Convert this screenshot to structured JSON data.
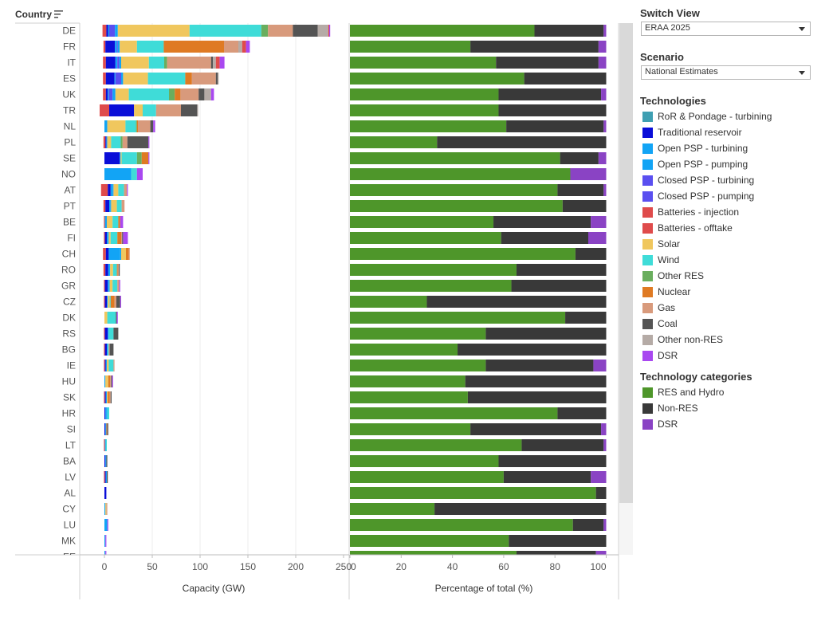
{
  "header": {
    "country_label": "Country"
  },
  "controls": {
    "switch_view": {
      "title": "Switch View",
      "value": "ERAA 2025"
    },
    "scenario": {
      "title": "Scenario",
      "value": "National Estimates"
    }
  },
  "legend_tech": {
    "title": "Technologies",
    "items": [
      {
        "label": "RoR & Pondage - turbining",
        "color": "#3f9fb2"
      },
      {
        "label": "Traditional reservoir",
        "color": "#0a0ed8"
      },
      {
        "label": "Open PSP - turbining",
        "color": "#12a4f5"
      },
      {
        "label": "Open PSP - pumping",
        "color": "#12a4f5"
      },
      {
        "label": "Closed PSP - turbining",
        "color": "#5a4ff0"
      },
      {
        "label": "Closed PSP - pumping",
        "color": "#5a4ff0"
      },
      {
        "label": "Batteries - injection",
        "color": "#df4b4b"
      },
      {
        "label": "Batteries - offtake",
        "color": "#df4b4b"
      },
      {
        "label": "Solar",
        "color": "#f0c75e"
      },
      {
        "label": "Wind",
        "color": "#3fdcd8"
      },
      {
        "label": "Other RES",
        "color": "#6aae5e"
      },
      {
        "label": "Nuclear",
        "color": "#df7a23"
      },
      {
        "label": "Gas",
        "color": "#d89a7c"
      },
      {
        "label": "Coal",
        "color": "#545454"
      },
      {
        "label": "Other non-RES",
        "color": "#b5aba6"
      },
      {
        "label": "DSR",
        "color": "#a948f0"
      }
    ]
  },
  "legend_cat": {
    "title": "Technology categories",
    "items": [
      {
        "label": "RES and Hydro",
        "color": "#4e962a"
      },
      {
        "label": "Non-RES",
        "color": "#393939"
      },
      {
        "label": "DSR",
        "color": "#8a43c4"
      }
    ]
  },
  "chart_data": [
    {
      "type": "bar",
      "orientation": "horizontal",
      "stacked": true,
      "xlabel": "Capacity (GW)",
      "xlim": [
        -5,
        250
      ],
      "xticks": [
        "0",
        "50",
        "100",
        "150",
        "200",
        "250"
      ],
      "categories": [
        "DE",
        "FR",
        "IT",
        "ES",
        "UK",
        "TR",
        "NL",
        "PL",
        "SE",
        "NO",
        "AT",
        "PT",
        "BE",
        "FI",
        "CH",
        "RO",
        "GR",
        "CZ",
        "DK",
        "RS",
        "BG",
        "IE",
        "HU",
        "SK",
        "HR",
        "SI",
        "LT",
        "BA",
        "LV",
        "AL",
        "CY",
        "LU",
        "MK",
        "EE"
      ],
      "series": [
        {
          "values": [
            4,
            2,
            3,
            3,
            3,
            10,
            0,
            2,
            0,
            0,
            7,
            2,
            1,
            1,
            3,
            2,
            1,
            1,
            0,
            1,
            1,
            1,
            0,
            1,
            0,
            0,
            1,
            0,
            1,
            0,
            0,
            0,
            0,
            0
          ]
        },
        {
          "values": [
            2,
            10,
            10,
            9,
            2,
            26,
            0,
            1,
            16,
            0,
            3,
            4,
            0,
            2,
            3,
            3,
            3,
            2,
            0,
            3,
            2,
            1,
            0,
            1,
            1,
            1,
            0,
            1,
            1,
            2,
            0,
            0,
            0,
            0
          ]
        },
        {
          "values": [
            1,
            2,
            2,
            1,
            1,
            0,
            0,
            0,
            1,
            28,
            2,
            1,
            0,
            1,
            12,
            1,
            1,
            0,
            0,
            0,
            0,
            0,
            0,
            0,
            1,
            0,
            0,
            0,
            0,
            0,
            0,
            0,
            0,
            0
          ]
        },
        {
          "values": [
            6,
            1,
            2,
            6,
            4,
            0,
            0,
            0,
            0,
            0,
            0,
            0,
            0,
            0,
            0,
            0,
            0,
            0,
            0,
            0,
            0,
            0,
            0,
            0,
            0,
            0,
            0,
            0,
            0,
            0,
            0,
            0,
            0,
            0
          ]
        },
        {
          "values": [
            3,
            2,
            2,
            2,
            3,
            0,
            3,
            1,
            0,
            0,
            1,
            1,
            2,
            1,
            1,
            1,
            1,
            1,
            0,
            1,
            1,
            1,
            1,
            1,
            1,
            1,
            1,
            1,
            1,
            0,
            1,
            3,
            1,
            1
          ]
        },
        {
          "values": [
            75,
            18,
            29,
            26,
            14,
            9,
            19,
            4,
            1,
            0,
            5,
            6,
            6,
            2,
            5,
            3,
            3,
            2,
            3,
            0,
            0,
            2,
            3,
            1,
            0,
            0,
            0,
            0,
            0,
            0,
            1,
            0,
            0,
            0
          ]
        },
        {
          "values": [
            75,
            28,
            16,
            39,
            42,
            14,
            11,
            10,
            16,
            6,
            6,
            5,
            6,
            7,
            0,
            4,
            5,
            1,
            9,
            5,
            1,
            5,
            0,
            0,
            2,
            0,
            1,
            0,
            0,
            0,
            0,
            0,
            0,
            0
          ]
        },
        {
          "values": [
            7,
            0,
            3,
            0,
            6,
            0,
            1,
            2,
            5,
            0,
            0,
            0,
            0,
            0,
            0,
            0,
            0,
            0,
            0,
            0,
            0,
            0,
            0,
            0,
            0,
            0,
            0,
            0,
            0,
            0,
            0,
            0,
            0,
            0
          ]
        },
        {
          "values": [
            0,
            63,
            0,
            7,
            6,
            0,
            1,
            0,
            7,
            0,
            0,
            0,
            2,
            4,
            3,
            1,
            0,
            4,
            0,
            0,
            0,
            0,
            2,
            2,
            0,
            1,
            0,
            0,
            0,
            0,
            0,
            0,
            0,
            0
          ]
        },
        {
          "values": [
            26,
            15,
            46,
            25,
            19,
            26,
            13,
            5,
            0,
            0,
            3,
            3,
            0,
            1,
            1,
            1,
            2,
            2,
            0,
            0,
            1,
            1,
            1,
            1,
            0,
            0,
            0,
            0,
            0,
            0,
            1,
            0,
            0,
            0
          ]
        },
        {
          "values": [
            26,
            0,
            2,
            2,
            6,
            17,
            3,
            22,
            0,
            0,
            0,
            0,
            0,
            1,
            0,
            1,
            0,
            4,
            1,
            5,
            4,
            0,
            1,
            1,
            0,
            1,
            0,
            1,
            1,
            0,
            0,
            0,
            0,
            0
          ]
        },
        {
          "values": [
            11,
            4,
            3,
            1,
            7,
            1,
            0,
            0,
            0,
            0,
            0,
            0,
            0,
            0,
            0,
            0,
            0,
            0,
            0,
            0,
            0,
            0,
            0,
            0,
            0,
            0,
            0,
            0,
            0,
            0,
            0,
            0,
            0,
            0
          ]
        },
        {
          "values": [
            1,
            4,
            4,
            0,
            0,
            0,
            0,
            0,
            0,
            0,
            0,
            0,
            0,
            0,
            0,
            0,
            0,
            0,
            0,
            0,
            0,
            0,
            0,
            0,
            0,
            0,
            0,
            0,
            0,
            0,
            0,
            0,
            0,
            0
          ]
        },
        {
          "values": [
            1,
            4,
            5,
            0,
            3,
            0,
            2,
            1,
            1,
            6,
            1,
            0,
            3,
            5,
            0,
            0,
            1,
            1,
            1,
            0,
            0,
            0,
            1,
            0,
            0,
            0,
            0,
            0,
            0,
            0,
            0,
            1,
            1,
            1
          ]
        }
      ]
    },
    {
      "type": "bar",
      "orientation": "horizontal",
      "stacked": true,
      "percent": true,
      "xlabel": "Percentage of total (%)",
      "xlim": [
        0,
        100
      ],
      "xticks": [
        "0",
        "20",
        "40",
        "60",
        "80",
        "100"
      ],
      "categories": [
        "DE",
        "FR",
        "IT",
        "ES",
        "UK",
        "TR",
        "NL",
        "PL",
        "SE",
        "NO",
        "AT",
        "PT",
        "BE",
        "FI",
        "CH",
        "RO",
        "GR",
        "CZ",
        "DK",
        "RS",
        "BG",
        "IE",
        "HU",
        "SK",
        "HR",
        "SI",
        "LT",
        "BA",
        "LV",
        "AL",
        "CY",
        "LU",
        "MK",
        "EE"
      ],
      "series": [
        {
          "name": "RES and Hydro",
          "values": [
            72,
            47,
            57,
            68,
            58,
            58,
            61,
            34,
            82,
            86,
            81,
            83,
            56,
            59,
            88,
            65,
            63,
            30,
            84,
            53,
            42,
            53,
            45,
            46,
            81,
            47,
            67,
            58,
            60,
            96,
            33,
            87,
            62,
            65
          ]
        },
        {
          "name": "Non-RES",
          "values": [
            27,
            50,
            40,
            32,
            40,
            42,
            38,
            66,
            15,
            0,
            18,
            17,
            38,
            34,
            12,
            35,
            37,
            70,
            16,
            47,
            58,
            42,
            55,
            54,
            19,
            51,
            32,
            42,
            34,
            4,
            67,
            12,
            38,
            31
          ]
        },
        {
          "name": "DSR",
          "values": [
            1,
            3,
            3,
            0,
            2,
            0,
            1,
            0,
            3,
            14,
            1,
            0,
            6,
            7,
            0,
            0,
            0,
            0,
            0,
            0,
            0,
            5,
            0,
            0,
            0,
            2,
            1,
            0,
            6,
            0,
            0,
            1,
            0,
            4
          ]
        }
      ]
    }
  ]
}
